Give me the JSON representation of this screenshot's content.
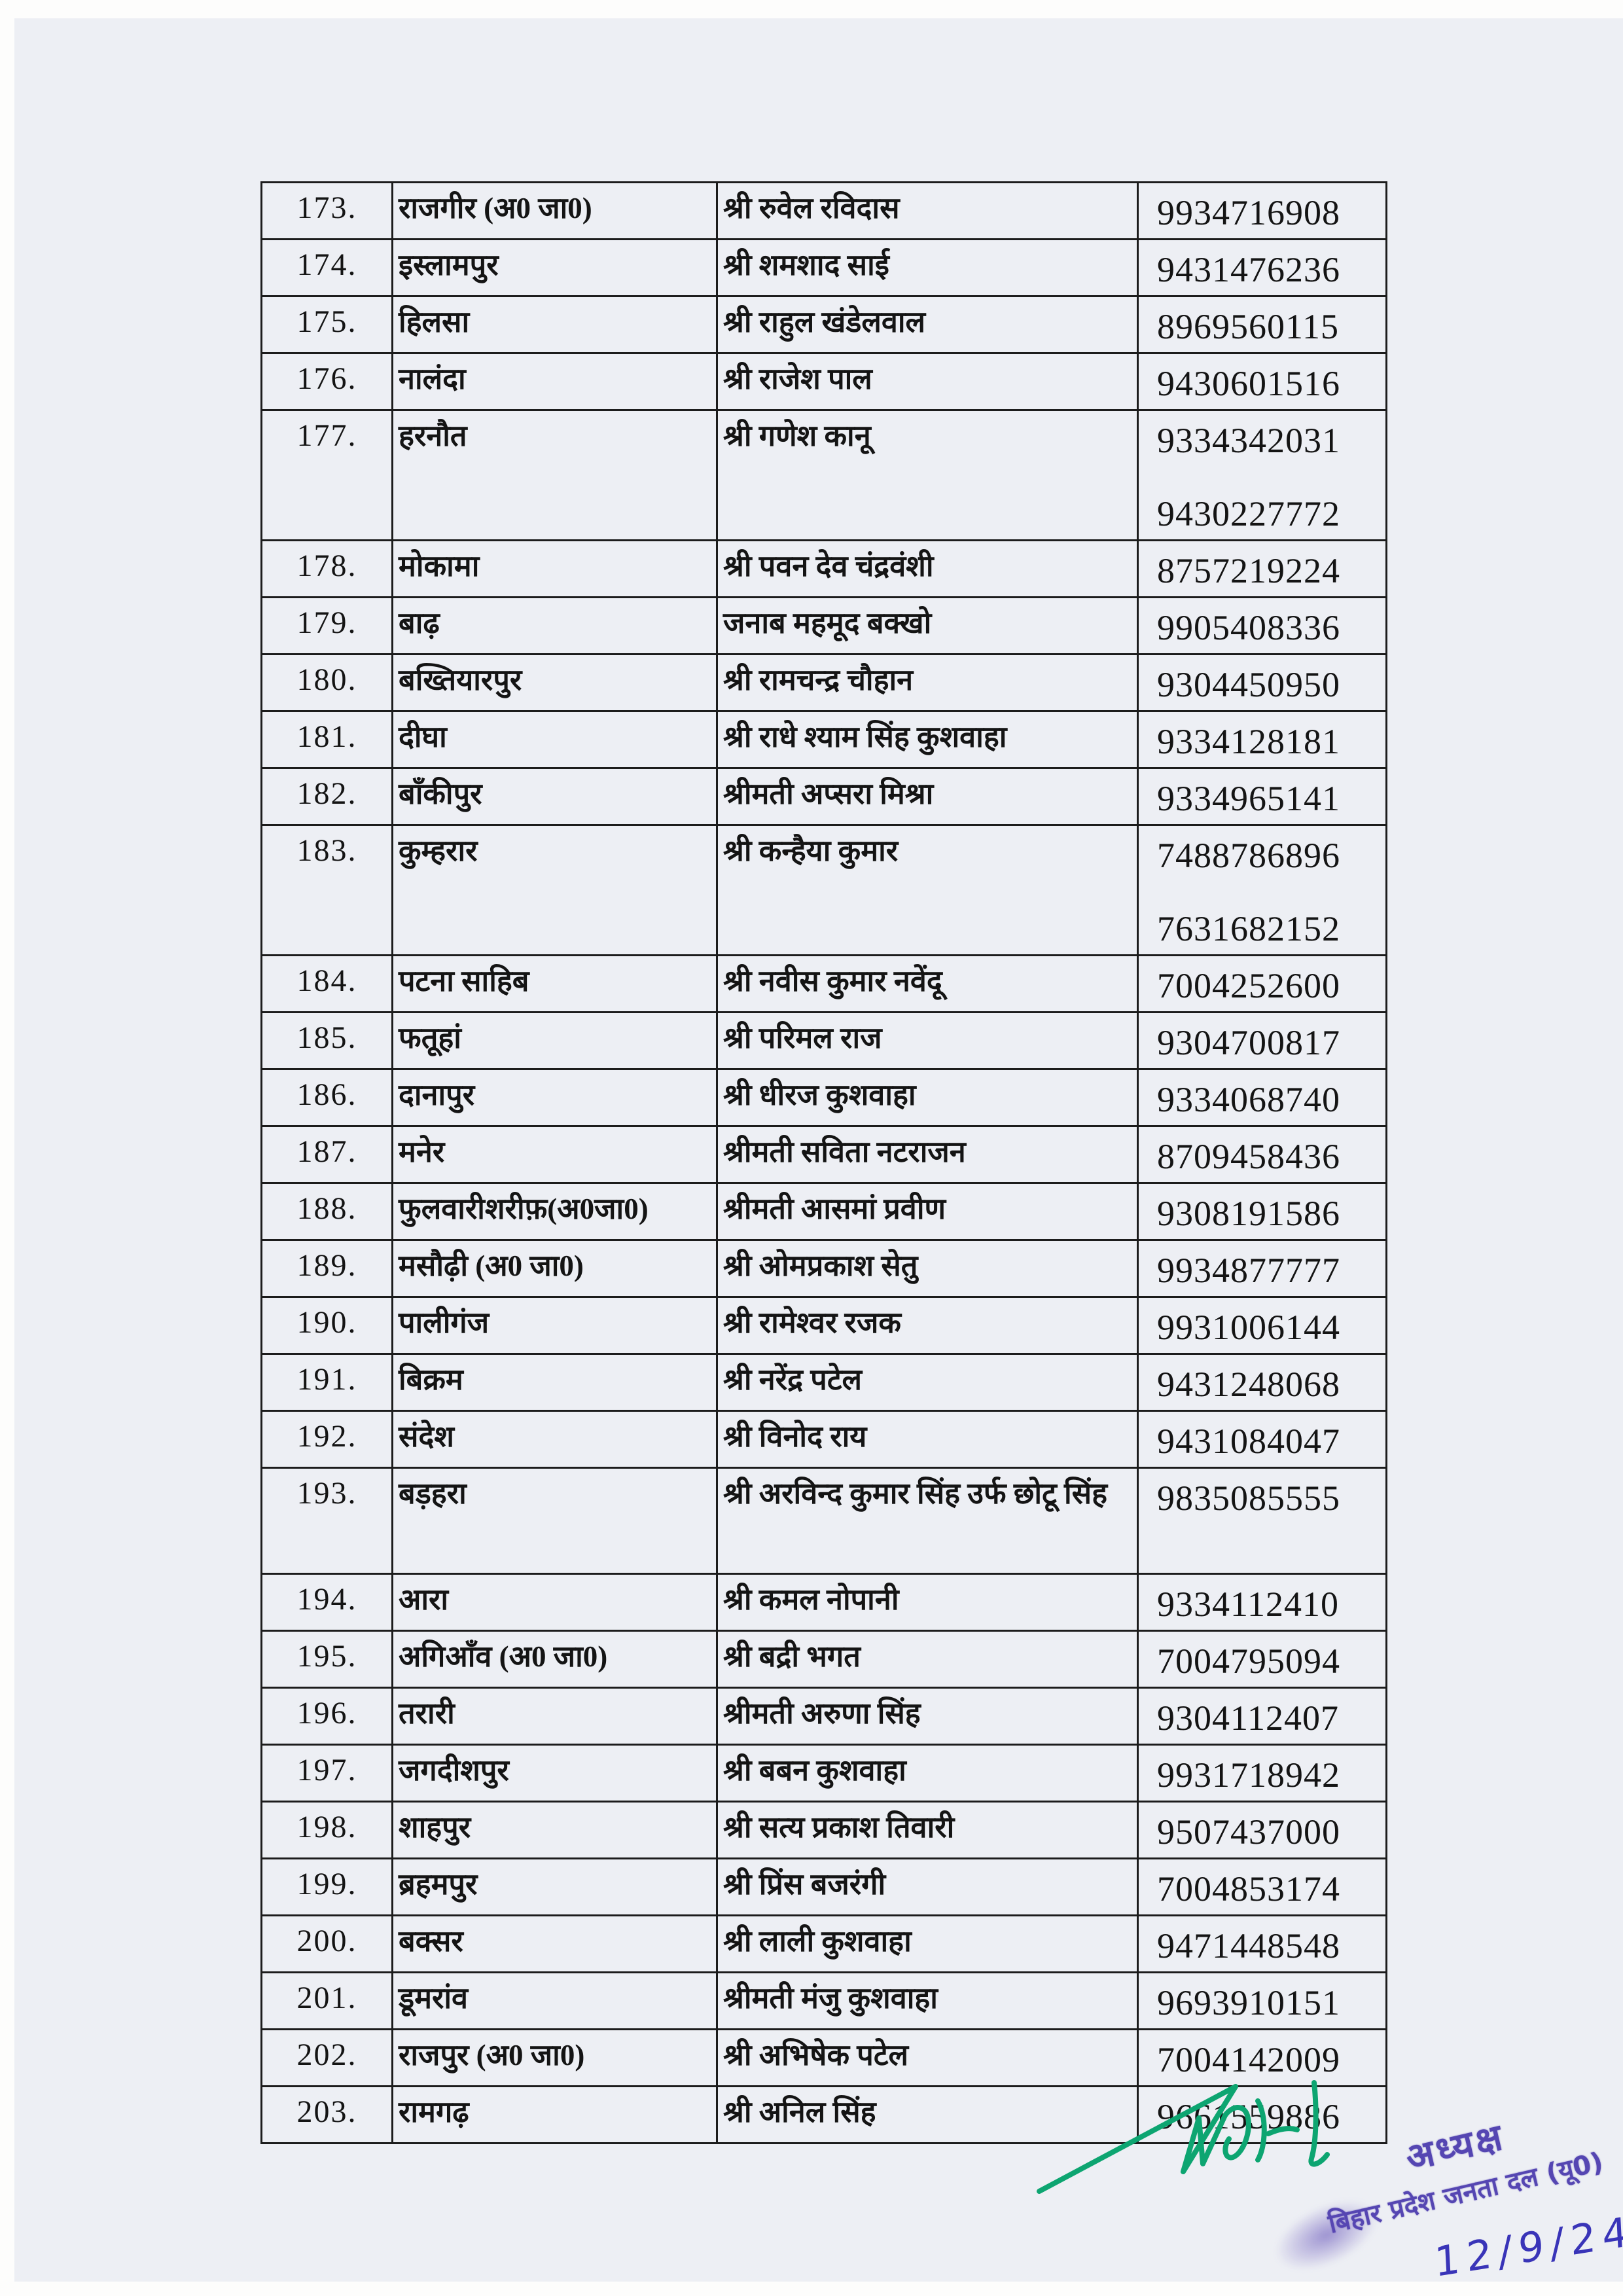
{
  "table": {
    "columns": [
      "serial",
      "constituency",
      "name",
      "phone"
    ],
    "rows": [
      {
        "serial": "173.",
        "constituency": "राजगीर (अ0 जा0)",
        "name": "श्री रुवेल रविदास",
        "phones": [
          "9934716908"
        ]
      },
      {
        "serial": "174.",
        "constituency": "इस्लामपुर",
        "name": "श्री शमशाद साई",
        "phones": [
          "9431476236"
        ]
      },
      {
        "serial": "175.",
        "constituency": "हिलसा",
        "name": "श्री राहुल खंडेलवाल",
        "phones": [
          "8969560115"
        ]
      },
      {
        "serial": "176.",
        "constituency": "नालंदा",
        "name": "श्री राजेश पाल",
        "phones": [
          "9430601516"
        ]
      },
      {
        "serial": "177.",
        "constituency": "हरनौत",
        "name": "श्री गणेश कानू",
        "phones": [
          "9334342031",
          "9430227772"
        ]
      },
      {
        "serial": "178.",
        "constituency": "मोकामा",
        "name": "श्री पवन देव चंद्रवंशी",
        "phones": [
          "8757219224"
        ]
      },
      {
        "serial": "179.",
        "constituency": "बाढ़",
        "name": "जनाब महमूद बक्खो",
        "phones": [
          "9905408336"
        ]
      },
      {
        "serial": "180.",
        "constituency": "बख्तियारपुर",
        "name": "श्री रामचन्द्र चौहान",
        "phones": [
          "9304450950"
        ]
      },
      {
        "serial": "181.",
        "constituency": "दीघा",
        "name": "श्री राधे श्याम सिंह कुशवाहा",
        "phones": [
          "9334128181"
        ]
      },
      {
        "serial": "182.",
        "constituency": "बाँकीपुर",
        "name": "श्रीमती अप्सरा मिश्रा",
        "phones": [
          "9334965141"
        ]
      },
      {
        "serial": "183.",
        "constituency": "कुम्हरार",
        "name": "श्री कन्हैया कुमार",
        "phones": [
          "7488786896",
          "7631682152"
        ]
      },
      {
        "serial": "184.",
        "constituency": "पटना साहिब",
        "name": "श्री नवीस कुमार नवेंदू",
        "phones": [
          "7004252600"
        ]
      },
      {
        "serial": "185.",
        "constituency": "फतूहां",
        "name": "श्री परिमल राज",
        "phones": [
          "9304700817"
        ]
      },
      {
        "serial": "186.",
        "constituency": "दानापुर",
        "name": "श्री धीरज कुशवाहा",
        "phones": [
          "9334068740"
        ]
      },
      {
        "serial": "187.",
        "constituency": "मनेर",
        "name": "श्रीमती सविता नटराजन",
        "phones": [
          "8709458436"
        ]
      },
      {
        "serial": "188.",
        "constituency": "फुलवारीशरीफ़(अ0जा0)",
        "name": "श्रीमती आसमां प्रवीण",
        "phones": [
          "9308191586"
        ]
      },
      {
        "serial": "189.",
        "constituency": "मसौढ़ी (अ0 जा0)",
        "name": "श्री ओमप्रकाश सेतु",
        "phones": [
          "9934877777"
        ]
      },
      {
        "serial": "190.",
        "constituency": "पालीगंज",
        "name": "श्री रामेश्वर रजक",
        "phones": [
          "9931006144"
        ]
      },
      {
        "serial": "191.",
        "constituency": "बिक्रम",
        "name": "श्री नरेंद्र पटेल",
        "phones": [
          "9431248068"
        ]
      },
      {
        "serial": "192.",
        "constituency": "संदेश",
        "name": "श्री विनोद राय",
        "phones": [
          "9431084047"
        ]
      },
      {
        "serial": "193.",
        "constituency": "बड़हरा",
        "name": "श्री अरविन्द कुमार सिंह उर्फ  छोटू सिंह",
        "phones": [
          "9835085555"
        ],
        "tall_name": true
      },
      {
        "serial": "194.",
        "constituency": "आरा",
        "name": "श्री कमल नोपानी",
        "phones": [
          "9334112410"
        ]
      },
      {
        "serial": "195.",
        "constituency": "अगिआँव (अ0 जा0)",
        "name": "श्री बद्री भगत",
        "phones": [
          "7004795094"
        ]
      },
      {
        "serial": "196.",
        "constituency": "तरारी",
        "name": "श्रीमती अरुणा  सिंह",
        "phones": [
          "9304112407"
        ]
      },
      {
        "serial": "197.",
        "constituency": "जगदीशपुर",
        "name": "श्री बबन कुशवाहा",
        "phones": [
          "9931718942"
        ]
      },
      {
        "serial": "198.",
        "constituency": "शाहपुर",
        "name": "श्री सत्य प्रकाश तिवारी",
        "phones": [
          "9507437000"
        ]
      },
      {
        "serial": "199.",
        "constituency": "ब्रहमपुर",
        "name": "श्री प्रिंस बजरंगी",
        "phones": [
          "7004853174"
        ]
      },
      {
        "serial": "200.",
        "constituency": "बक्सर",
        "name": "श्री लाली कुशवाहा",
        "phones": [
          "9471448548"
        ]
      },
      {
        "serial": "201.",
        "constituency": "डूमरांव",
        "name": "श्रीमती मंजु कुशवाहा",
        "phones": [
          "9693910151"
        ]
      },
      {
        "serial": "202.",
        "constituency": "राजपुर (अ0 जा0)",
        "name": "श्री अभिषेक पटेल",
        "phones": [
          "7004142009"
        ]
      },
      {
        "serial": "203.",
        "constituency": "रामगढ़",
        "name": "श्री अनिल सिंह",
        "phones": [
          "9661559886"
        ]
      }
    ]
  },
  "stamp": {
    "line1": "अध्यक्ष",
    "line2": "बिहार प्रदेश जनता दल (यू0)",
    "color": "#4a3aae"
  },
  "handwritten_date": "12/9/24",
  "signature": {
    "ink_color": "#0da571"
  },
  "colors": {
    "paper": "#edeff4",
    "ink": "#141414",
    "table_border": "#1c1c1c",
    "date_ink": "#3934b8"
  }
}
